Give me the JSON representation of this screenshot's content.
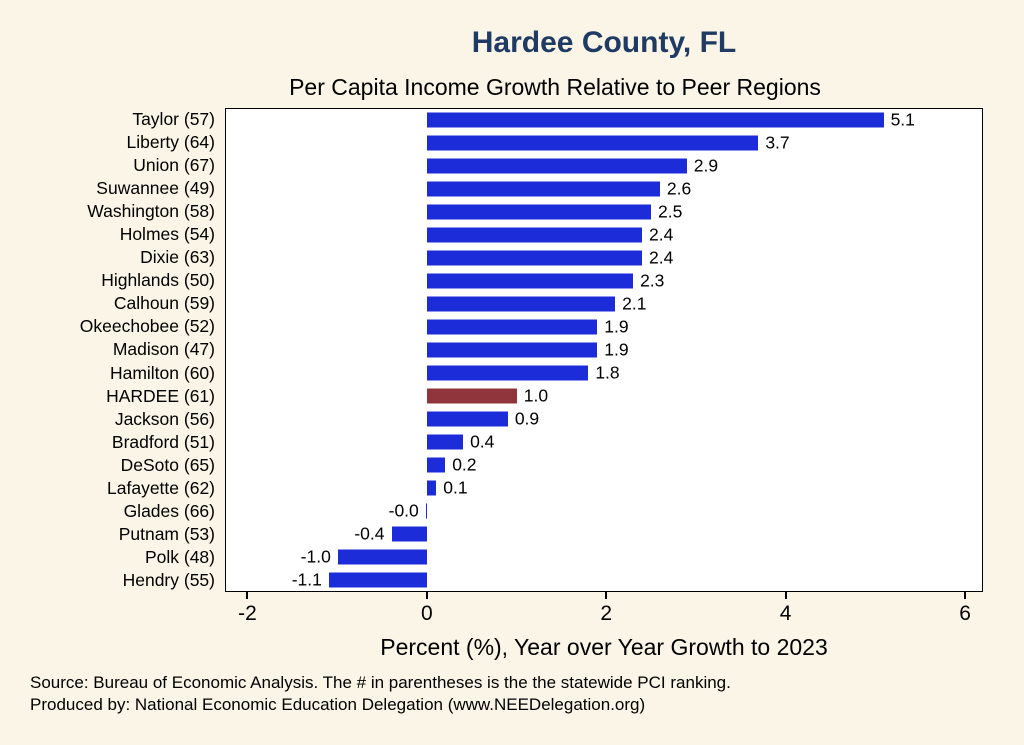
{
  "title": "Hardee County, FL",
  "subtitle": "Per Capita Income Growth Relative to Peer Regions",
  "colors": {
    "background": "#FAF5E6",
    "plot_background": "#FFFFFF",
    "title_color": "#1F3A63",
    "bar_color": "#1B2CD8",
    "highlight_color": "#90353B"
  },
  "chart_data": {
    "type": "bar",
    "orientation": "horizontal",
    "title": "Hardee County, FL",
    "subtitle": "Per Capita Income Growth Relative to Peer Regions",
    "categories": [
      "Taylor (57)",
      "Liberty (64)",
      "Union (67)",
      "Suwannee (49)",
      "Washington (58)",
      "Holmes (54)",
      "Dixie (63)",
      "Highlands (50)",
      "Calhoun (59)",
      "Okeechobee (52)",
      "Madison (47)",
      "Hamilton (60)",
      "HARDEE (61)",
      "Jackson (56)",
      "Bradford (51)",
      "DeSoto (65)",
      "Lafayette (62)",
      "Glades (66)",
      "Putnam (53)",
      "Polk (48)",
      "Hendry (55)"
    ],
    "values": [
      5.1,
      3.7,
      2.9,
      2.6,
      2.5,
      2.4,
      2.4,
      2.3,
      2.1,
      1.9,
      1.9,
      1.8,
      1.0,
      0.9,
      0.4,
      0.2,
      0.1,
      -0.0,
      -0.4,
      -1.0,
      -1.1
    ],
    "value_labels": [
      "5.1",
      "3.7",
      "2.9",
      "2.6",
      "2.5",
      "2.4",
      "2.4",
      "2.3",
      "2.1",
      "1.9",
      "1.9",
      "1.8",
      "1.0",
      "0.9",
      "0.4",
      "0.2",
      "0.1",
      "-0.0",
      "-0.4",
      "-1.0",
      "-1.1"
    ],
    "highlight_category": "HARDEE (61)",
    "highlight_index": 12,
    "bar_color": "#1B2CD8",
    "highlight_color": "#90353B",
    "xlabel": "Percent (%), Year over Year Growth to 2023",
    "xlim": [
      -2.25,
      6.2
    ],
    "xticks": [
      -2,
      0,
      2,
      4,
      6
    ],
    "xtick_labels": [
      "-2",
      "0",
      "2",
      "4",
      "6"
    ],
    "grid": false,
    "legend": false
  },
  "footer": {
    "source": "Source: Bureau of Economic Analysis. The # in parentheses is the the statewide PCI ranking.",
    "produced_by": "Produced by: National Economic Education Delegation (www.NEEDelegation.org)"
  }
}
